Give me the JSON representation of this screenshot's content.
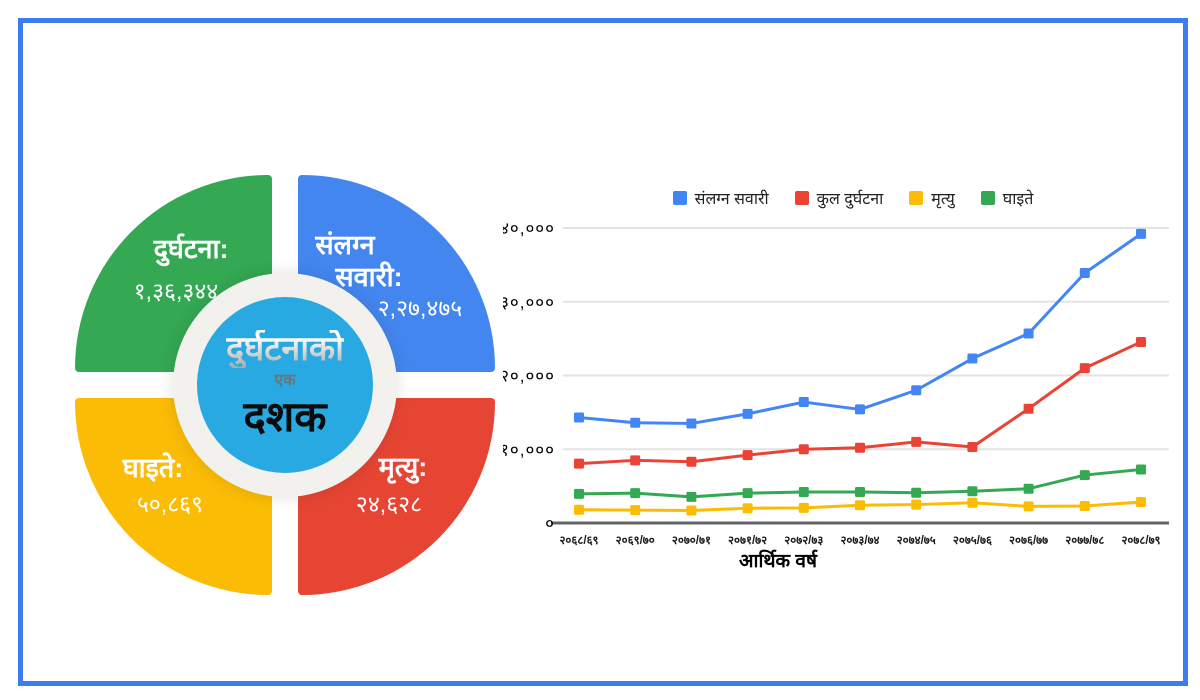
{
  "page": {
    "border_color": "#3D7BF0"
  },
  "infographic": {
    "center": {
      "line1": "दुर्घटनाको",
      "line2": "एक",
      "line3": "दशक",
      "circle_color": "#29A9E1",
      "ring_color": "#F2F1EE"
    },
    "quadrants": [
      {
        "id": "accidents",
        "label": "दुर्घटना:",
        "value": "१,३६,३४४",
        "color": "#34A853",
        "position": "top-left"
      },
      {
        "id": "vehicles",
        "label_line1": "संलग्न",
        "label_line2": "सवारी:",
        "value": "२,२७,४७५",
        "color": "#4486EF",
        "position": "top-right"
      },
      {
        "id": "injured",
        "label": "घाइते:",
        "value": "५०,८६९",
        "color": "#FBBC05",
        "position": "bottom-left"
      },
      {
        "id": "deaths",
        "label": "मृत्यु:",
        "value": "२४,६२८",
        "color": "#E74533",
        "position": "bottom-right"
      }
    ]
  },
  "chart_data": {
    "type": "line",
    "title": "",
    "xlabel": "आर्थिक वर्ष",
    "ylabel": "",
    "categories": [
      "२०६८/६९",
      "२०६९/७०",
      "२०७०/७१",
      "२०७१/७२",
      "२०७२/७३",
      "२०७३/७४",
      "२०७४/७५",
      "२०७५/७६",
      "२०७६/७७",
      "२०७७/७८",
      "२०७८/७९"
    ],
    "ylim": [
      0,
      40000
    ],
    "ytick_values": [
      0,
      10000,
      20000,
      30000,
      40000
    ],
    "ytick_labels": [
      "०",
      "१०,०००",
      "२०,०००",
      "३०,०००",
      "४०,०००"
    ],
    "grid": true,
    "legend_position": "top",
    "marker": "square",
    "series": [
      {
        "name": "संलग्न सवारी",
        "color": "#4285F4",
        "values": [
          14300,
          13600,
          13500,
          14800,
          16400,
          15400,
          18000,
          22300,
          25700,
          33900,
          39200
        ]
      },
      {
        "name": "कुल दुर्घटना",
        "color": "#EA4335",
        "values": [
          8050,
          8500,
          8300,
          9200,
          10000,
          10200,
          11000,
          10300,
          15500,
          21000,
          24550
        ]
      },
      {
        "name": "मृत्यु",
        "color": "#FBBC04",
        "values": [
          1800,
          1750,
          1700,
          2000,
          2050,
          2400,
          2500,
          2750,
          2250,
          2300,
          2850
        ]
      },
      {
        "name": "घाइते",
        "color": "#34A853",
        "values": [
          3950,
          4050,
          3550,
          4050,
          4200,
          4200,
          4100,
          4300,
          4650,
          6500,
          7250
        ]
      }
    ]
  }
}
